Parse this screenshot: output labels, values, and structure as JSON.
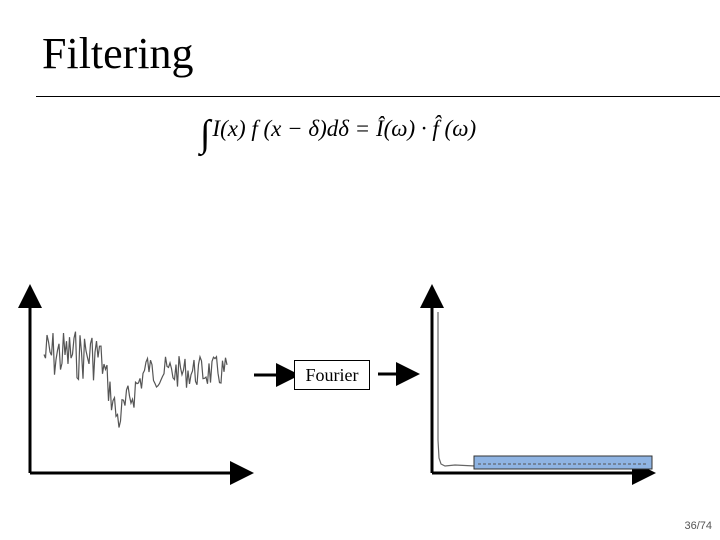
{
  "slide": {
    "title": "Filtering",
    "equation": "I(x) f (x − δ)dδ = Î(ω) · f̂ (ω)",
    "process_label": "Fourier",
    "page_number": "36/74"
  },
  "colors": {
    "signal": "#555555",
    "highlight_fill": "#8fb4e3",
    "axis": "#000000"
  }
}
